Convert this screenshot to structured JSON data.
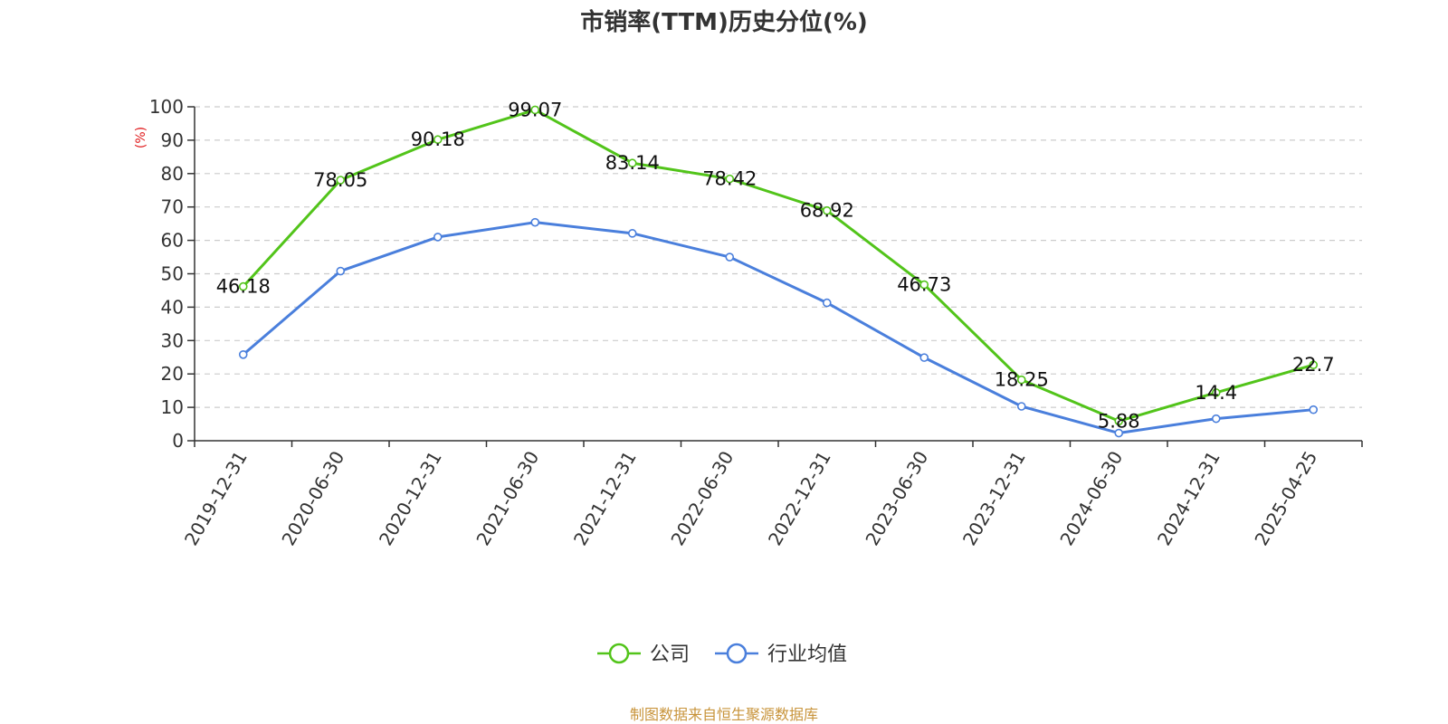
{
  "chart_data": {
    "type": "line",
    "title": "市销率(TTM)历史分位(%)",
    "ylabel": "(%)",
    "ylim": [
      0,
      100
    ],
    "yticks": [
      0,
      10,
      20,
      30,
      40,
      50,
      60,
      70,
      80,
      90,
      100
    ],
    "categories": [
      "2019-12-31",
      "2020-06-30",
      "2020-12-31",
      "2021-06-30",
      "2021-12-31",
      "2022-06-30",
      "2022-12-31",
      "2023-06-30",
      "2023-12-31",
      "2024-06-30",
      "2024-12-31",
      "2025-04-25"
    ],
    "grid": true,
    "legend_position": "bottom",
    "series": [
      {
        "name": "公司",
        "color": "#52c41a",
        "values": [
          46.18,
          78.05,
          90.18,
          99.07,
          83.14,
          78.42,
          68.92,
          46.73,
          18.25,
          5.88,
          14.4,
          22.7
        ],
        "labels": [
          "46.18",
          "78.05",
          "90.18",
          "99.07",
          "83.14",
          "78.42",
          "68.92",
          "46.73",
          "18.25",
          "5.88",
          "14.4",
          "22.7"
        ],
        "show_labels": true
      },
      {
        "name": "行业均值",
        "color": "#4a7fdc",
        "values": [
          25.8,
          50.8,
          61.0,
          65.4,
          62.1,
          55.0,
          41.3,
          24.9,
          10.3,
          2.3,
          6.6,
          9.3
        ],
        "show_labels": false
      }
    ]
  },
  "source_text": "制图数据来自恒生聚源数据库",
  "colors": {
    "axis": "#333333",
    "grid": "#cccccc",
    "unit_label": "#e0191b",
    "source": "#c8943b"
  }
}
